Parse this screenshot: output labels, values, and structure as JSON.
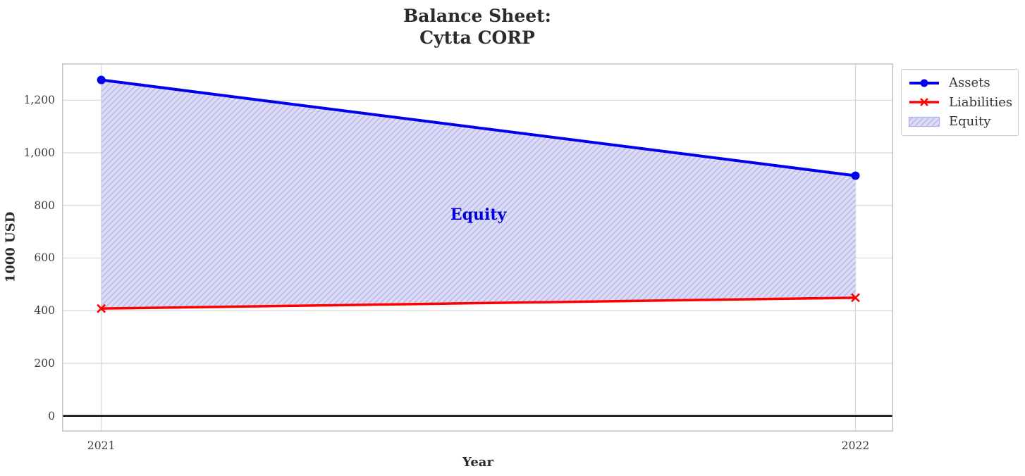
{
  "chart_data": {
    "type": "line",
    "title": "Balance Sheet:\nCytta CORP",
    "title_lines": [
      "Balance Sheet:",
      "Cytta CORP"
    ],
    "xlabel": "Year",
    "ylabel": "1000 USD",
    "x": [
      2021,
      2022
    ],
    "series": [
      {
        "name": "Assets",
        "values": [
          1277,
          913
        ],
        "marker": "circle"
      },
      {
        "name": "Liabilities",
        "values": [
          408,
          449
        ],
        "marker": "x"
      }
    ],
    "area": {
      "name": "Equity",
      "between": [
        "Assets",
        "Liabilities"
      ],
      "hatch": "//"
    },
    "annotation": {
      "label": "Equity",
      "x": 2021.5,
      "y": 765
    },
    "xticks": [
      {
        "value": 2021,
        "label": "2021"
      },
      {
        "value": 2022,
        "label": "2022"
      }
    ],
    "yticks": [
      {
        "value": 0,
        "label": "0"
      },
      {
        "value": 200,
        "label": "200"
      },
      {
        "value": 400,
        "label": "400"
      },
      {
        "value": 600,
        "label": "600"
      },
      {
        "value": 800,
        "label": "800"
      },
      {
        "value": 1000,
        "label": "1,000"
      },
      {
        "value": 1200,
        "label": "1,200"
      }
    ],
    "xlim": [
      2020.948,
      2022.05
    ],
    "ylim": [
      -60,
      1340
    ],
    "grid": true,
    "zero_line": true,
    "legend": [
      "Assets",
      "Liabilities",
      "Equity"
    ],
    "legend_position": "outside upper right",
    "colors": {
      "assets": "#0000ee",
      "liabilities": "#ff0000",
      "equity_fill": "#dcdcf7",
      "equity_hatch": "#b0b0ea",
      "annotation": "#0000dd",
      "grid": "#d6d6d6",
      "spine": "#c3c3c3",
      "zero_line": "#000000",
      "title_text": "#2b2b2b",
      "tick_text": "#3d3d3d"
    }
  }
}
